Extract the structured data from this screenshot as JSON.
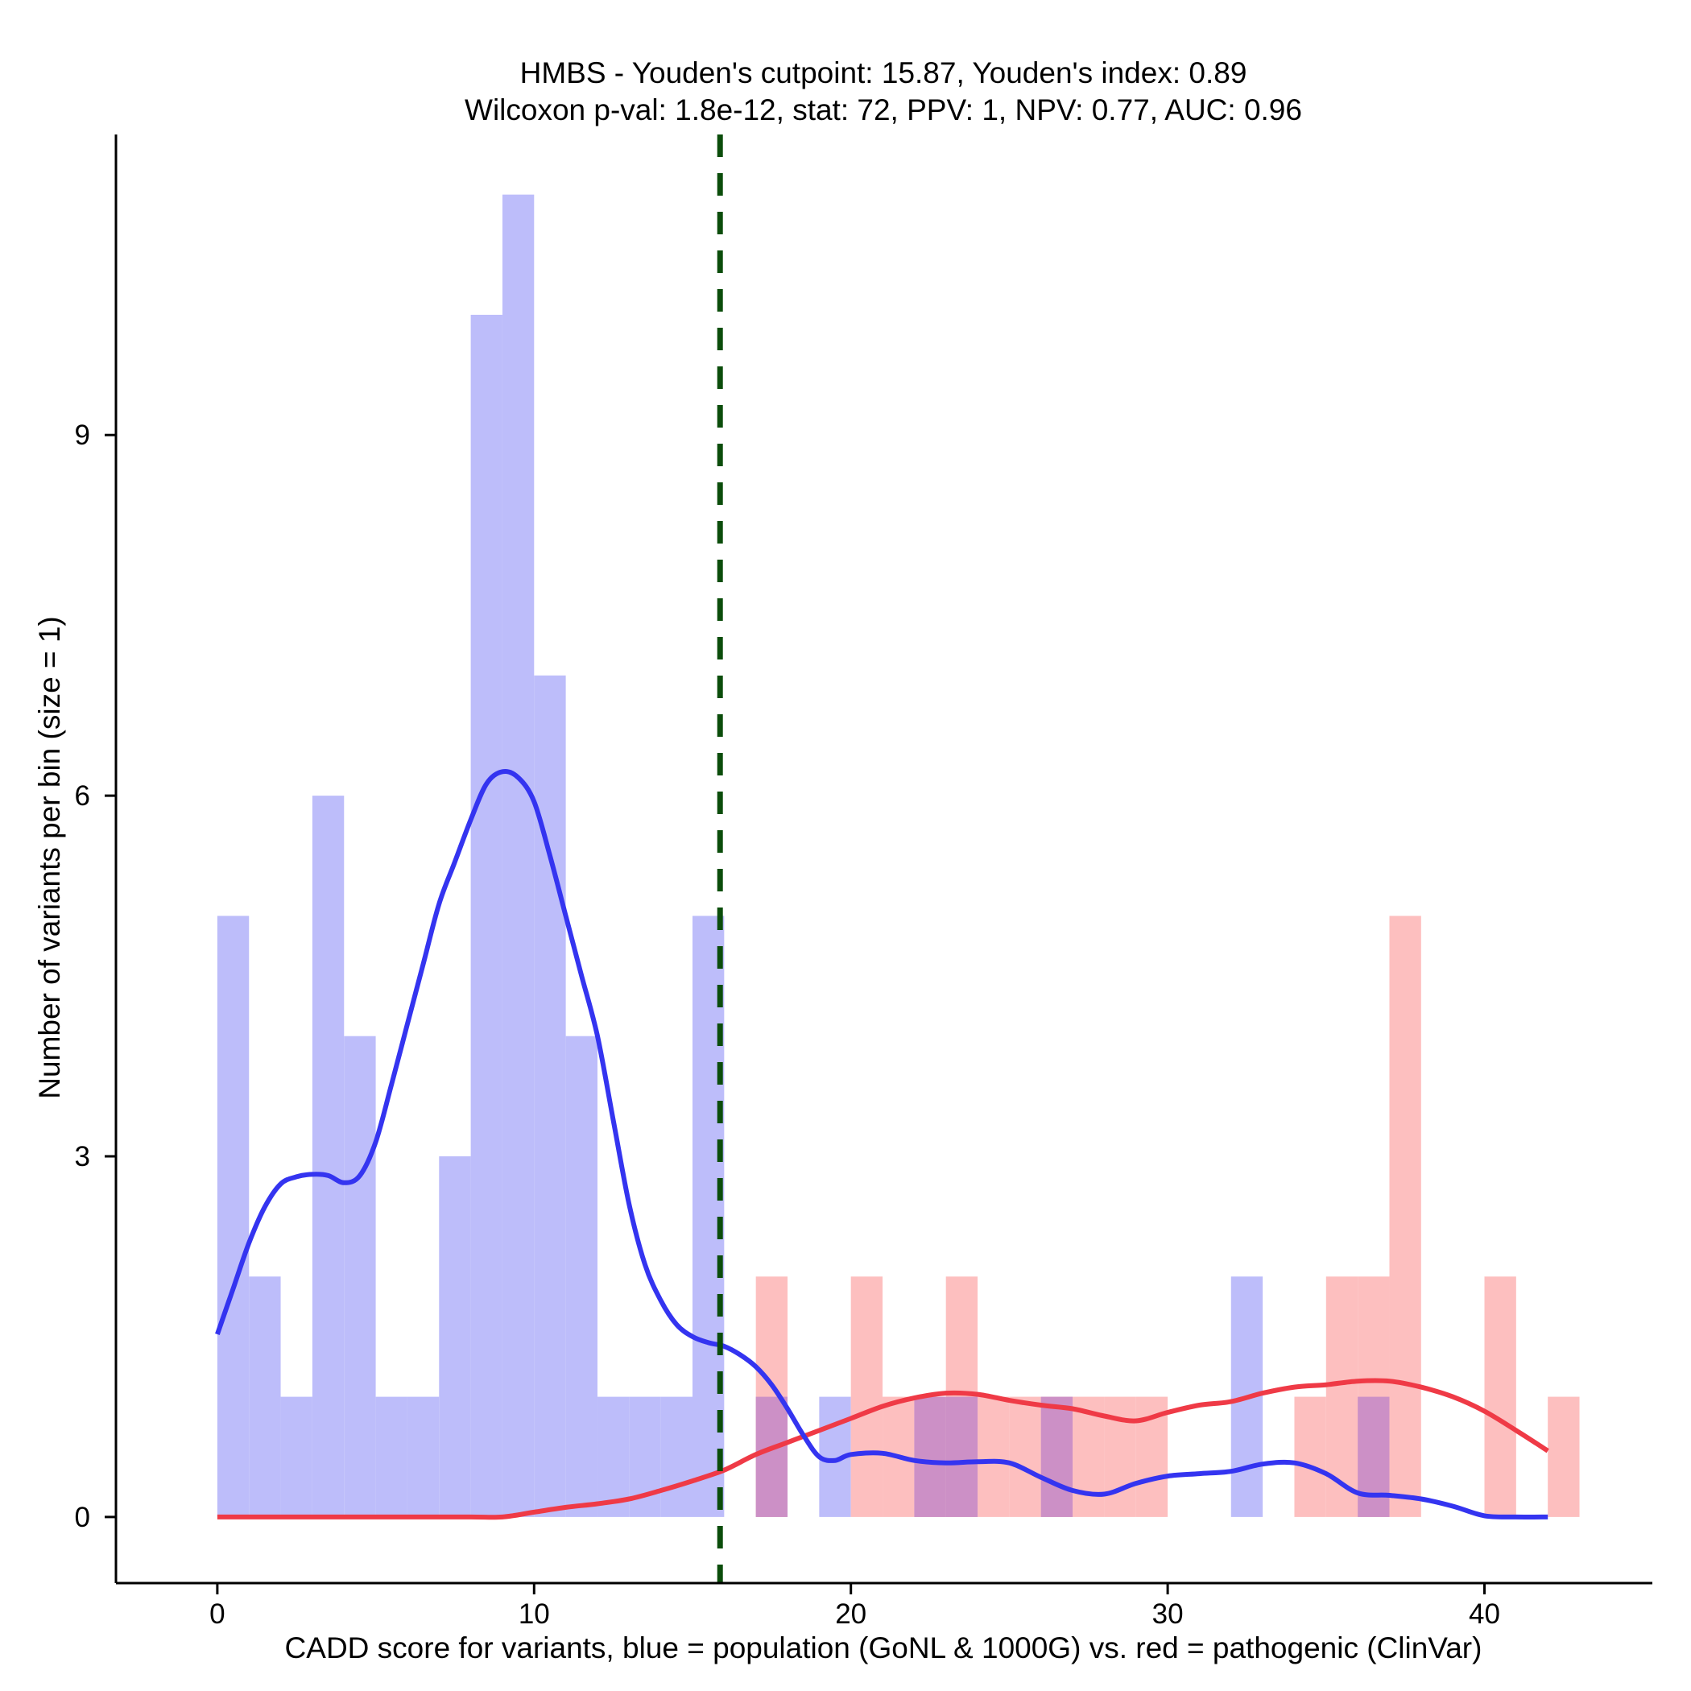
{
  "chart_data": {
    "type": "histogram-density",
    "title": "HMBS - Youden's cutpoint: 15.87, Youden's index: 0.89",
    "subtitle": "Wilcoxon p-val: 1.8e-12, stat: 72, PPV: 1, NPV: 0.77, AUC: 0.96",
    "xlabel": "CADD score for variants, blue = population (GoNL & 1000G) vs. red = pathogenic (ClinVar)",
    "ylabel": "Number of variants per bin (size = 1)",
    "xlim": [
      -3.2,
      45.3
    ],
    "ylim": [
      -0.55,
      11.5
    ],
    "x_ticks": [
      0,
      10,
      20,
      30,
      40
    ],
    "y_ticks": [
      0,
      3,
      6,
      9
    ],
    "bin_width": 1,
    "cutpoint": 15.87,
    "colors": {
      "population_bar": "#bdbdfa",
      "pathogenic_bar": "#fdbfbf",
      "overlap_bar": "#cc90c6",
      "population_line": "#3434f0",
      "pathogenic_line": "#ef3a46",
      "cutpoint_line": "#0b4d0b"
    },
    "series": [
      {
        "name": "population (GoNL & 1000G)",
        "bins": [
          {
            "x": 0,
            "count": 5
          },
          {
            "x": 1,
            "count": 2
          },
          {
            "x": 2,
            "count": 1
          },
          {
            "x": 3,
            "count": 6
          },
          {
            "x": 4,
            "count": 4
          },
          {
            "x": 5,
            "count": 1
          },
          {
            "x": 6,
            "count": 1
          },
          {
            "x": 7,
            "count": 3
          },
          {
            "x": 8,
            "count": 10
          },
          {
            "x": 9,
            "count": 11
          },
          {
            "x": 10,
            "count": 7
          },
          {
            "x": 11,
            "count": 4
          },
          {
            "x": 12,
            "count": 1
          },
          {
            "x": 13,
            "count": 1
          },
          {
            "x": 14,
            "count": 1
          },
          {
            "x": 15,
            "count": 5
          },
          {
            "x": 17,
            "count": 1
          },
          {
            "x": 19,
            "count": 1
          },
          {
            "x": 22,
            "count": 1
          },
          {
            "x": 23,
            "count": 1
          },
          {
            "x": 26,
            "count": 1
          },
          {
            "x": 32,
            "count": 2
          },
          {
            "x": 36,
            "count": 1
          }
        ],
        "density": {
          "x": [
            0,
            0.5,
            1,
            1.5,
            2,
            2.5,
            3,
            3.5,
            4,
            4.5,
            5,
            5.5,
            6,
            6.5,
            7,
            7.5,
            8,
            8.5,
            9,
            9.5,
            10,
            10.5,
            11,
            11.5,
            12,
            12.5,
            13,
            13.5,
            14,
            14.5,
            15,
            15.5,
            16,
            16.5,
            17,
            17.5,
            18,
            18.5,
            19,
            19.5,
            20,
            21,
            22,
            23,
            24,
            25,
            26,
            27,
            28,
            29,
            30,
            31,
            32,
            33,
            34,
            35,
            36,
            37,
            38,
            39,
            40,
            41,
            42
          ],
          "y": [
            1.52,
            1.9,
            2.28,
            2.58,
            2.77,
            2.83,
            2.85,
            2.84,
            2.78,
            2.84,
            3.12,
            3.6,
            4.1,
            4.6,
            5.1,
            5.45,
            5.8,
            6.1,
            6.2,
            6.15,
            5.95,
            5.5,
            5.0,
            4.5,
            4.0,
            3.3,
            2.6,
            2.1,
            1.8,
            1.6,
            1.5,
            1.45,
            1.42,
            1.35,
            1.25,
            1.1,
            0.9,
            0.68,
            0.5,
            0.47,
            0.52,
            0.53,
            0.47,
            0.45,
            0.46,
            0.45,
            0.33,
            0.22,
            0.19,
            0.28,
            0.34,
            0.36,
            0.38,
            0.44,
            0.45,
            0.36,
            0.2,
            0.18,
            0.15,
            0.09,
            0.01,
            0.0,
            0.0
          ]
        }
      },
      {
        "name": "pathogenic (ClinVar)",
        "bins": [
          {
            "x": 17,
            "count": 2
          },
          {
            "x": 20,
            "count": 2
          },
          {
            "x": 21,
            "count": 1
          },
          {
            "x": 22,
            "count": 1
          },
          {
            "x": 23,
            "count": 2
          },
          {
            "x": 24,
            "count": 1
          },
          {
            "x": 25,
            "count": 1
          },
          {
            "x": 26,
            "count": 1
          },
          {
            "x": 27,
            "count": 1
          },
          {
            "x": 28,
            "count": 1
          },
          {
            "x": 29,
            "count": 1
          },
          {
            "x": 34,
            "count": 1
          },
          {
            "x": 35,
            "count": 2
          },
          {
            "x": 36,
            "count": 2
          },
          {
            "x": 37,
            "count": 5
          },
          {
            "x": 40,
            "count": 2
          },
          {
            "x": 42,
            "count": 1
          }
        ],
        "density": {
          "x": [
            0,
            2,
            4,
            6,
            8,
            9,
            10,
            11,
            12,
            13,
            14,
            15,
            16,
            17,
            18,
            19,
            20,
            21,
            22,
            23,
            24,
            25,
            26,
            27,
            28,
            29,
            30,
            31,
            32,
            33,
            34,
            35,
            36,
            37,
            38,
            39,
            40,
            41,
            42
          ],
          "y": [
            0.0,
            0.0,
            0.0,
            0.0,
            0.0,
            0.0,
            0.04,
            0.08,
            0.11,
            0.15,
            0.22,
            0.3,
            0.39,
            0.52,
            0.62,
            0.72,
            0.82,
            0.92,
            0.99,
            1.03,
            1.02,
            0.97,
            0.93,
            0.9,
            0.84,
            0.8,
            0.87,
            0.93,
            0.96,
            1.03,
            1.08,
            1.1,
            1.13,
            1.13,
            1.08,
            1.0,
            0.88,
            0.72,
            0.55
          ]
        }
      }
    ]
  }
}
